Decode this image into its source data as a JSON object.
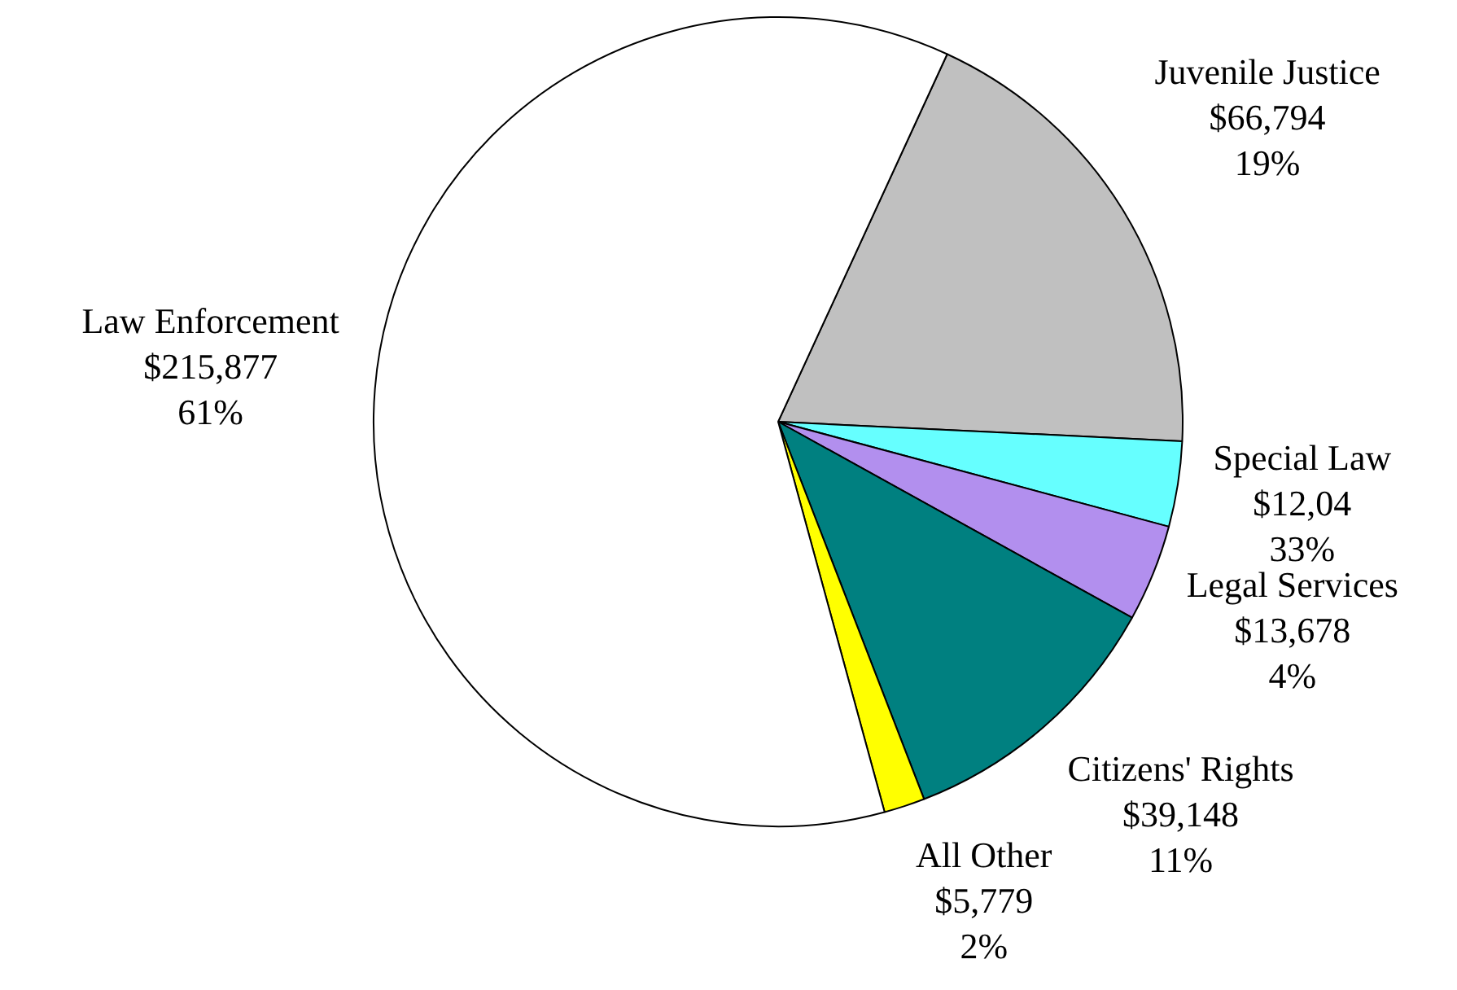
{
  "chart_data": {
    "type": "pie",
    "categories": [
      "Juvenile Justice",
      "Special Law",
      "Legal Services",
      "Citizens' Rights",
      "All Other",
      "Law Enforcement"
    ],
    "values": [
      66794,
      12043,
      13678,
      39148,
      5779,
      215877
    ],
    "colors": [
      "#c0c0c0",
      "#66ffff",
      "#b28fee",
      "#008080",
      "#ffff00",
      "#ffffff"
    ],
    "value_labels": [
      "$66,794\n19%",
      null,
      "$13,678\n4%",
      "$39,148\n11%",
      "$5,779\n2%",
      "$215,877\n61%"
    ],
    "annotations": [
      {
        "text": "$12,04\n33%",
        "x": "Special Law"
      }
    ],
    "legend": false
  }
}
